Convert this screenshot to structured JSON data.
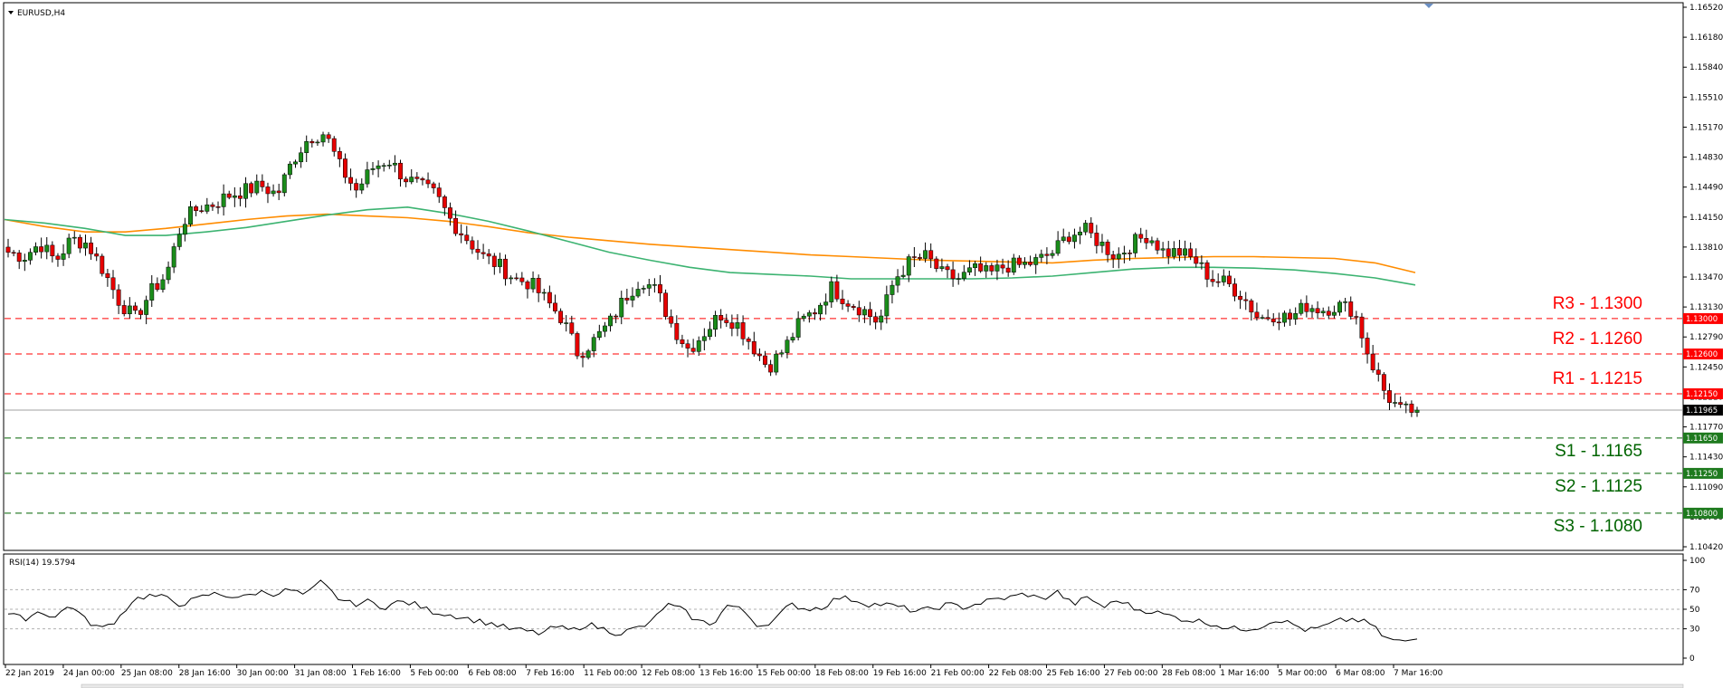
{
  "window": {
    "title": "EURUSD,H4",
    "rsi_label": "RSI(14) 19.5794"
  },
  "chart_data": {
    "type": "candlestick",
    "symbol": "EURUSD",
    "timeframe": "H4",
    "ylim": [
      1.1042,
      1.1652
    ],
    "y_ticks": [
      "1.16520",
      "1.16180",
      "1.15840",
      "1.15510",
      "1.15170",
      "1.14830",
      "1.14490",
      "1.14150",
      "1.13810",
      "1.13470",
      "1.13130",
      "1.12790",
      "1.12450",
      "1.12110",
      "1.11770",
      "1.11430",
      "1.11090",
      "1.10760",
      "1.10420"
    ],
    "x_ticks": [
      "22 Jan 2019",
      "24 Jan 00:00",
      "25 Jan 08:00",
      "28 Jan 16:00",
      "30 Jan 00:00",
      "31 Jan 08:00",
      "1 Feb 16:00",
      "5 Feb 00:00",
      "6 Feb 08:00",
      "7 Feb 16:00",
      "11 Feb 00:00",
      "12 Feb 08:00",
      "13 Feb 16:00",
      "15 Feb 00:00",
      "18 Feb 08:00",
      "19 Feb 16:00",
      "21 Feb 00:00",
      "22 Feb 08:00",
      "25 Feb 16:00",
      "27 Feb 00:00",
      "28 Feb 08:00",
      "1 Mar 16:00",
      "5 Mar 00:00",
      "6 Mar 08:00",
      "7 Mar 16:00"
    ],
    "levels": [
      {
        "label": "R3 - 1.1300",
        "value": 1.13,
        "tag": "1.13000",
        "color": "#ff0000",
        "kind": "resistance"
      },
      {
        "label": "R2 - 1.1260",
        "value": 1.126,
        "tag": "1.12600",
        "color": "#ff0000",
        "kind": "resistance"
      },
      {
        "label": "R1 - 1.1215",
        "value": 1.1215,
        "tag": "1.12150",
        "color": "#ff0000",
        "kind": "resistance"
      },
      {
        "label": "S1 - 1.1165",
        "value": 1.1165,
        "tag": "1.11650",
        "color": "#006400",
        "kind": "support"
      },
      {
        "label": "S2 - 1.1125",
        "value": 1.1125,
        "tag": "1.11250",
        "color": "#006400",
        "kind": "support"
      },
      {
        "label": "S3 - 1.1080",
        "value": 1.108,
        "tag": "1.10800",
        "color": "#006400",
        "kind": "support"
      }
    ],
    "current_price": {
      "value": 1.11965,
      "tag": "1.11965"
    },
    "close_anchors": [
      1.1375,
      1.137,
      1.1385,
      1.1365,
      1.139,
      1.1385,
      1.1355,
      1.132,
      1.13,
      1.133,
      1.135,
      1.141,
      1.1425,
      1.143,
      1.144,
      1.1445,
      1.145,
      1.144,
      1.148,
      1.1505,
      1.151,
      1.147,
      1.1445,
      1.147,
      1.148,
      1.146,
      1.145,
      1.144,
      1.141,
      1.139,
      1.137,
      1.136,
      1.1345,
      1.134,
      1.132,
      1.13,
      1.126,
      1.1275,
      1.1295,
      1.1325,
      1.1345,
      1.133,
      1.129,
      1.1265,
      1.1285,
      1.1305,
      1.1295,
      1.127,
      1.1245,
      1.1265,
      1.1295,
      1.131,
      1.1335,
      1.132,
      1.131,
      1.1295,
      1.1345,
      1.1365,
      1.137,
      1.135,
      1.1345,
      1.1355,
      1.135,
      1.136,
      1.136,
      1.1365,
      1.1375,
      1.1395,
      1.14,
      1.1385,
      1.137,
      1.1385,
      1.1395,
      1.1375,
      1.1375,
      1.1365,
      1.1345,
      1.134,
      1.1325,
      1.13,
      1.1305,
      1.13,
      1.1315,
      1.131,
      1.1315,
      1.131,
      1.1255,
      1.1215,
      1.1195,
      1.11965
    ],
    "ma_orange": [
      1.1412,
      1.1404,
      1.1398,
      1.1398,
      1.1402,
      1.1407,
      1.1412,
      1.1416,
      1.1418,
      1.1416,
      1.1414,
      1.141,
      1.1404,
      1.1397,
      1.1392,
      1.1388,
      1.1384,
      1.1381,
      1.1378,
      1.1375,
      1.1372,
      1.137,
      1.1368,
      1.1366,
      1.1365,
      1.1364,
      1.1363,
      1.1366,
      1.1368,
      1.1369,
      1.137,
      1.137,
      1.1369,
      1.1368,
      1.1363,
      1.1352
    ],
    "ma_green": [
      1.1412,
      1.1408,
      1.1402,
      1.1394,
      1.1394,
      1.1398,
      1.1403,
      1.141,
      1.1417,
      1.1423,
      1.1426,
      1.1419,
      1.141,
      1.1399,
      1.1387,
      1.1375,
      1.1366,
      1.1358,
      1.1352,
      1.135,
      1.1348,
      1.1345,
      1.1345,
      1.1345,
      1.1345,
      1.1346,
      1.1348,
      1.1352,
      1.1356,
      1.1358,
      1.1358,
      1.1357,
      1.1355,
      1.1351,
      1.1346,
      1.1338
    ],
    "rsi": {
      "ylim": [
        0,
        100
      ],
      "y_ticks": [
        "100",
        "70",
        "50",
        "30",
        "0"
      ],
      "current": 19.5794,
      "anchors": [
        45,
        40,
        48,
        42,
        55,
        38,
        30,
        40,
        60,
        64,
        62,
        55,
        60,
        66,
        64,
        62,
        68,
        66,
        70,
        64,
        78,
        62,
        55,
        58,
        52,
        58,
        55,
        48,
        45,
        42,
        38,
        35,
        30,
        28,
        25,
        32,
        28,
        35,
        30,
        25,
        30,
        35,
        55,
        50,
        38,
        35,
        55,
        48,
        32,
        40,
        55,
        50,
        52,
        62,
        60,
        55,
        55,
        52,
        48,
        50,
        55,
        52,
        56,
        60,
        62,
        66,
        60,
        68,
        55,
        62,
        52,
        60,
        50,
        48,
        44,
        40,
        38,
        35,
        30,
        30,
        32,
        40,
        35,
        28,
        32,
        38,
        40,
        35,
        20,
        17,
        19.58
      ]
    }
  }
}
